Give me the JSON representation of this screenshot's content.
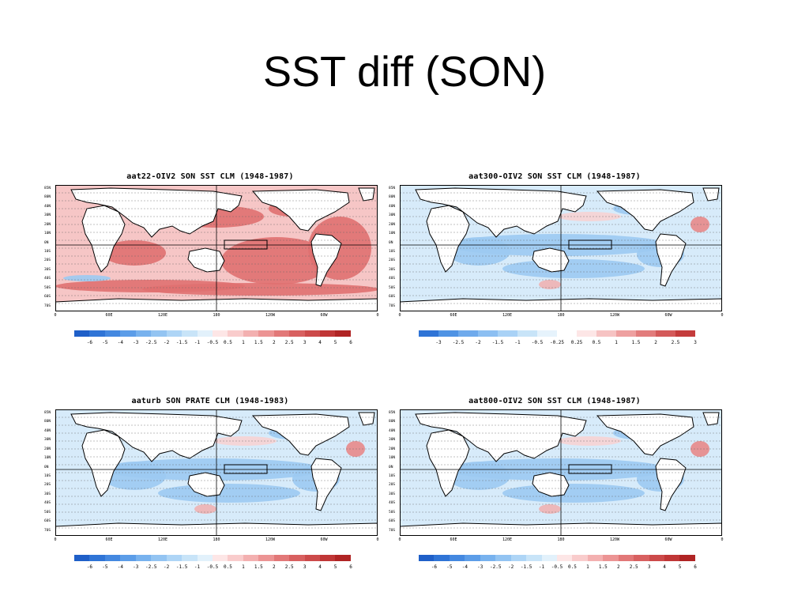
{
  "slide": {
    "title": "SST diff (SON)"
  },
  "panels": [
    {
      "title": "aat22-OIV2 SON SST CLM (1948-1987)",
      "scale": "wide",
      "pattern": "warm"
    },
    {
      "title": "aat300-OIV2 SON SST CLM (1948-1987)",
      "scale": "narrow",
      "pattern": "cool"
    },
    {
      "title": "aaturb SON PRATE CLM (1948-1983)",
      "scale": "wide",
      "pattern": "cool"
    },
    {
      "title": "aat800-OIV2 SON SST CLM (1948-1987)",
      "scale": "wide",
      "pattern": "cool"
    }
  ],
  "lat_labels": [
    "85N",
    "80N",
    "40N",
    "30N",
    "20N",
    "10N",
    "0N",
    "10S",
    "20S",
    "30S",
    "40S",
    "50S",
    "60S",
    "70S"
  ],
  "lon_labels": [
    "0",
    "60E",
    "120E",
    "180",
    "120W",
    "60W",
    "0"
  ],
  "scales": {
    "wide": {
      "labels": [
        "-6",
        "-5",
        "-4",
        "-3",
        "-2.5",
        "-2",
        "-1.5",
        "-1",
        "-0.5",
        "0.5",
        "1",
        "1.5",
        "2",
        "2.5",
        "3",
        "4",
        "5",
        "6"
      ],
      "colors": [
        "#1f5fc8",
        "#2f74d6",
        "#4488e0",
        "#5c9de8",
        "#78b2ee",
        "#93c4f2",
        "#aed5f6",
        "#c8e4f8",
        "#e2f1fb",
        "#fde6e6",
        "#f9cccc",
        "#f3b0b0",
        "#ec9494",
        "#e27878",
        "#d86060",
        "#cc4a4a",
        "#c03636",
        "#b02424"
      ]
    },
    "narrow": {
      "labels": [
        "-3",
        "-2.5",
        "-2",
        "-1.5",
        "-1",
        "-0.5",
        "-0.25",
        "0.25",
        "0.5",
        "1",
        "1.5",
        "2",
        "2.5",
        "3"
      ],
      "colors": [
        "#2f74d6",
        "#4f93e4",
        "#6faaec",
        "#8cbff2",
        "#a9d2f6",
        "#c8e4f8",
        "#e6f3fc",
        "#fff",
        "#fde6e6",
        "#f6c3c3",
        "#eea0a0",
        "#e27c7c",
        "#d45a5a",
        "#c43c3c"
      ]
    }
  },
  "colors": {
    "land": "#ffffff",
    "coast": "#000000",
    "warm_dense": "#e07070",
    "warm_light": "#f6c6c6",
    "cool_dense": "#9ccaf2",
    "cool_light": "#d7ebfa"
  }
}
